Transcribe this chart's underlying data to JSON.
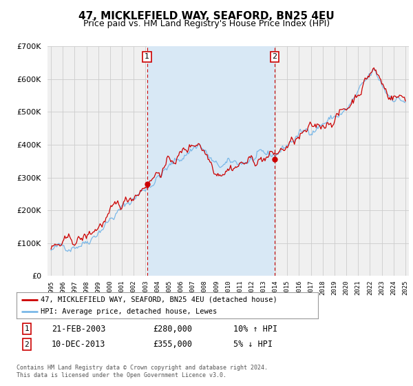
{
  "title": "47, MICKLEFIELD WAY, SEAFORD, BN25 4EU",
  "subtitle": "Price paid vs. HM Land Registry's House Price Index (HPI)",
  "bg_color": "#f0f0f0",
  "plot_bg_color": "#f0f0f0",
  "shade_color": "#d8e8f5",
  "legend_line1": "47, MICKLEFIELD WAY, SEAFORD, BN25 4EU (detached house)",
  "legend_line2": "HPI: Average price, detached house, Lewes",
  "sale1_date": "21-FEB-2003",
  "sale1_price": "£280,000",
  "sale1_hpi": "10% ↑ HPI",
  "sale2_date": "10-DEC-2013",
  "sale2_price": "£355,000",
  "sale2_hpi": "5% ↓ HPI",
  "footer": "Contains HM Land Registry data © Crown copyright and database right 2024.\nThis data is licensed under the Open Government Licence v3.0.",
  "vline1_x": 2003.13,
  "vline2_x": 2013.93,
  "marker1_y": 280000,
  "marker2_y": 355000,
  "ylim": [
    0,
    700000
  ],
  "xlim_start": 1994.7,
  "xlim_end": 2025.3,
  "hpi_color": "#7ab8e8",
  "price_color": "#cc0000",
  "vline_color": "#cc0000",
  "grid_color": "#cccccc",
  "title_fontsize": 11,
  "subtitle_fontsize": 9
}
